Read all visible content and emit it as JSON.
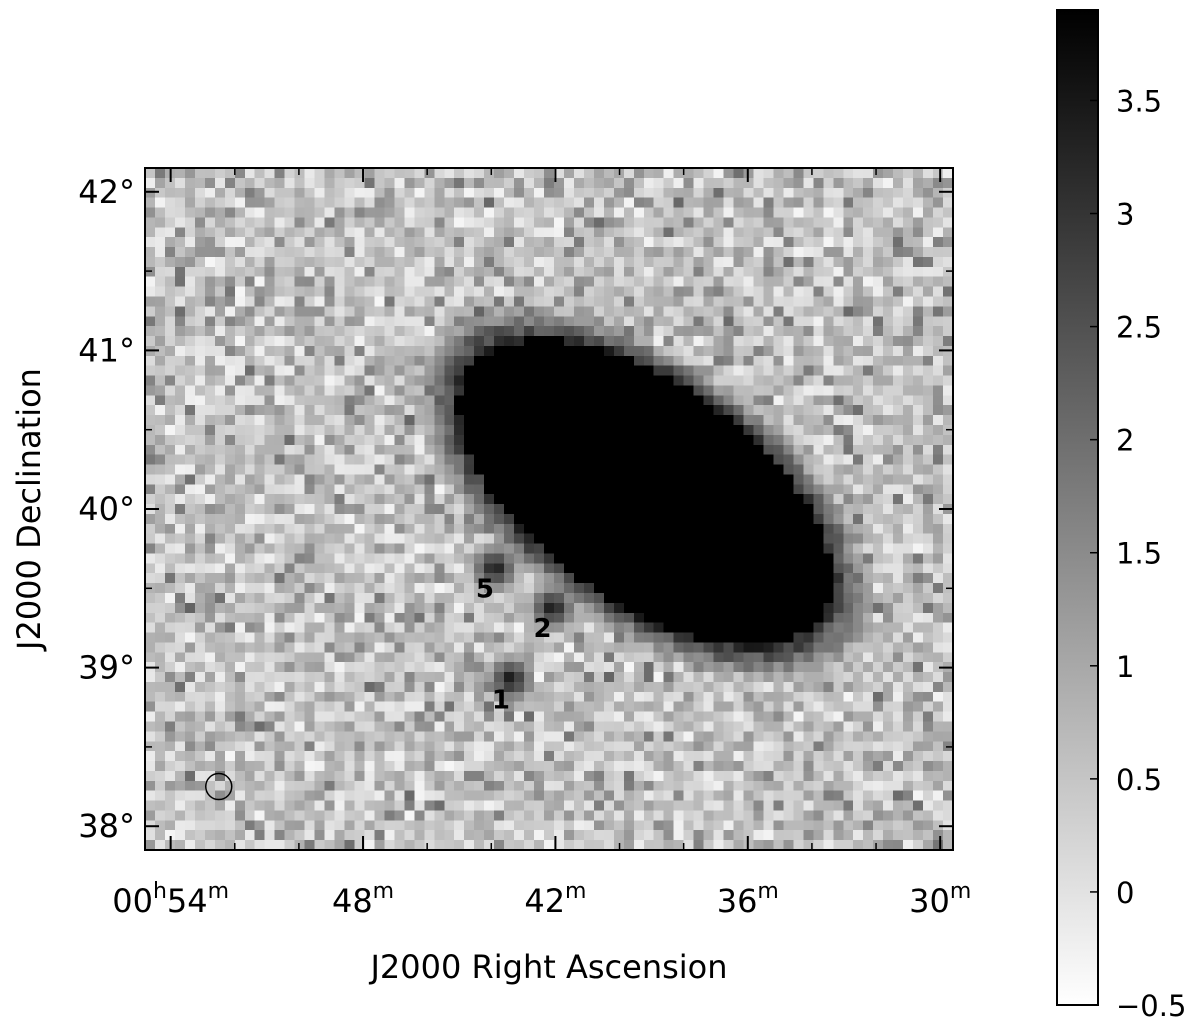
{
  "chart_data": {
    "type": "heatmap",
    "title": "",
    "xlabel": "J2000 Right Ascension",
    "ylabel": "J2000 Declination",
    "x_ticks": [
      {
        "h": "00",
        "m": "54",
        "label_hours": "00",
        "label_minutes": "54",
        "minutes": 54
      },
      {
        "m": "48",
        "label_minutes": "48",
        "minutes": 48
      },
      {
        "m": "42",
        "label_minutes": "42",
        "minutes": 42
      },
      {
        "m": "36",
        "label_minutes": "36",
        "minutes": 36
      },
      {
        "m": "30",
        "label_minutes": "30",
        "minutes": 30
      }
    ],
    "y_ticks": [
      {
        "label": "38°",
        "value": 38
      },
      {
        "label": "39°",
        "value": 39
      },
      {
        "label": "40°",
        "value": 40
      },
      {
        "label": "41°",
        "value": 41
      },
      {
        "label": "42°",
        "value": 42
      }
    ],
    "xlim_ra_minutes": [
      54.8,
      29.6
    ],
    "ylim_dec_deg": [
      37.85,
      42.15
    ],
    "colorbar": {
      "vmin": -0.5,
      "vmax": 3.9,
      "ticks": [
        {
          "label": "−0.5",
          "value": -0.5
        },
        {
          "label": "0",
          "value": 0
        },
        {
          "label": "0.5",
          "value": 0.5
        },
        {
          "label": "1",
          "value": 1
        },
        {
          "label": "1.5",
          "value": 1.5
        },
        {
          "label": "2",
          "value": 2
        },
        {
          "label": "2.5",
          "value": 2.5
        },
        {
          "label": "3",
          "value": 3
        },
        {
          "label": "3.5",
          "value": 3.5
        }
      ],
      "colormap": "grayscale, white low to black high"
    },
    "main_emission": {
      "description_type": "saturated region",
      "center_ra_minutes": 39.2,
      "center_dec_deg": 40.1,
      "intensity": 3.9
    },
    "sources": [
      {
        "label": "1",
        "ra_minutes": 43.7,
        "dec_deg": 38.8
      },
      {
        "label": "2",
        "ra_minutes": 42.4,
        "dec_deg": 39.25
      },
      {
        "label": "5",
        "ra_minutes": 44.2,
        "dec_deg": 39.5
      }
    ],
    "beam_marker": {
      "ra_minutes": 52.5,
      "dec_deg": 38.25
    },
    "grid": false
  }
}
